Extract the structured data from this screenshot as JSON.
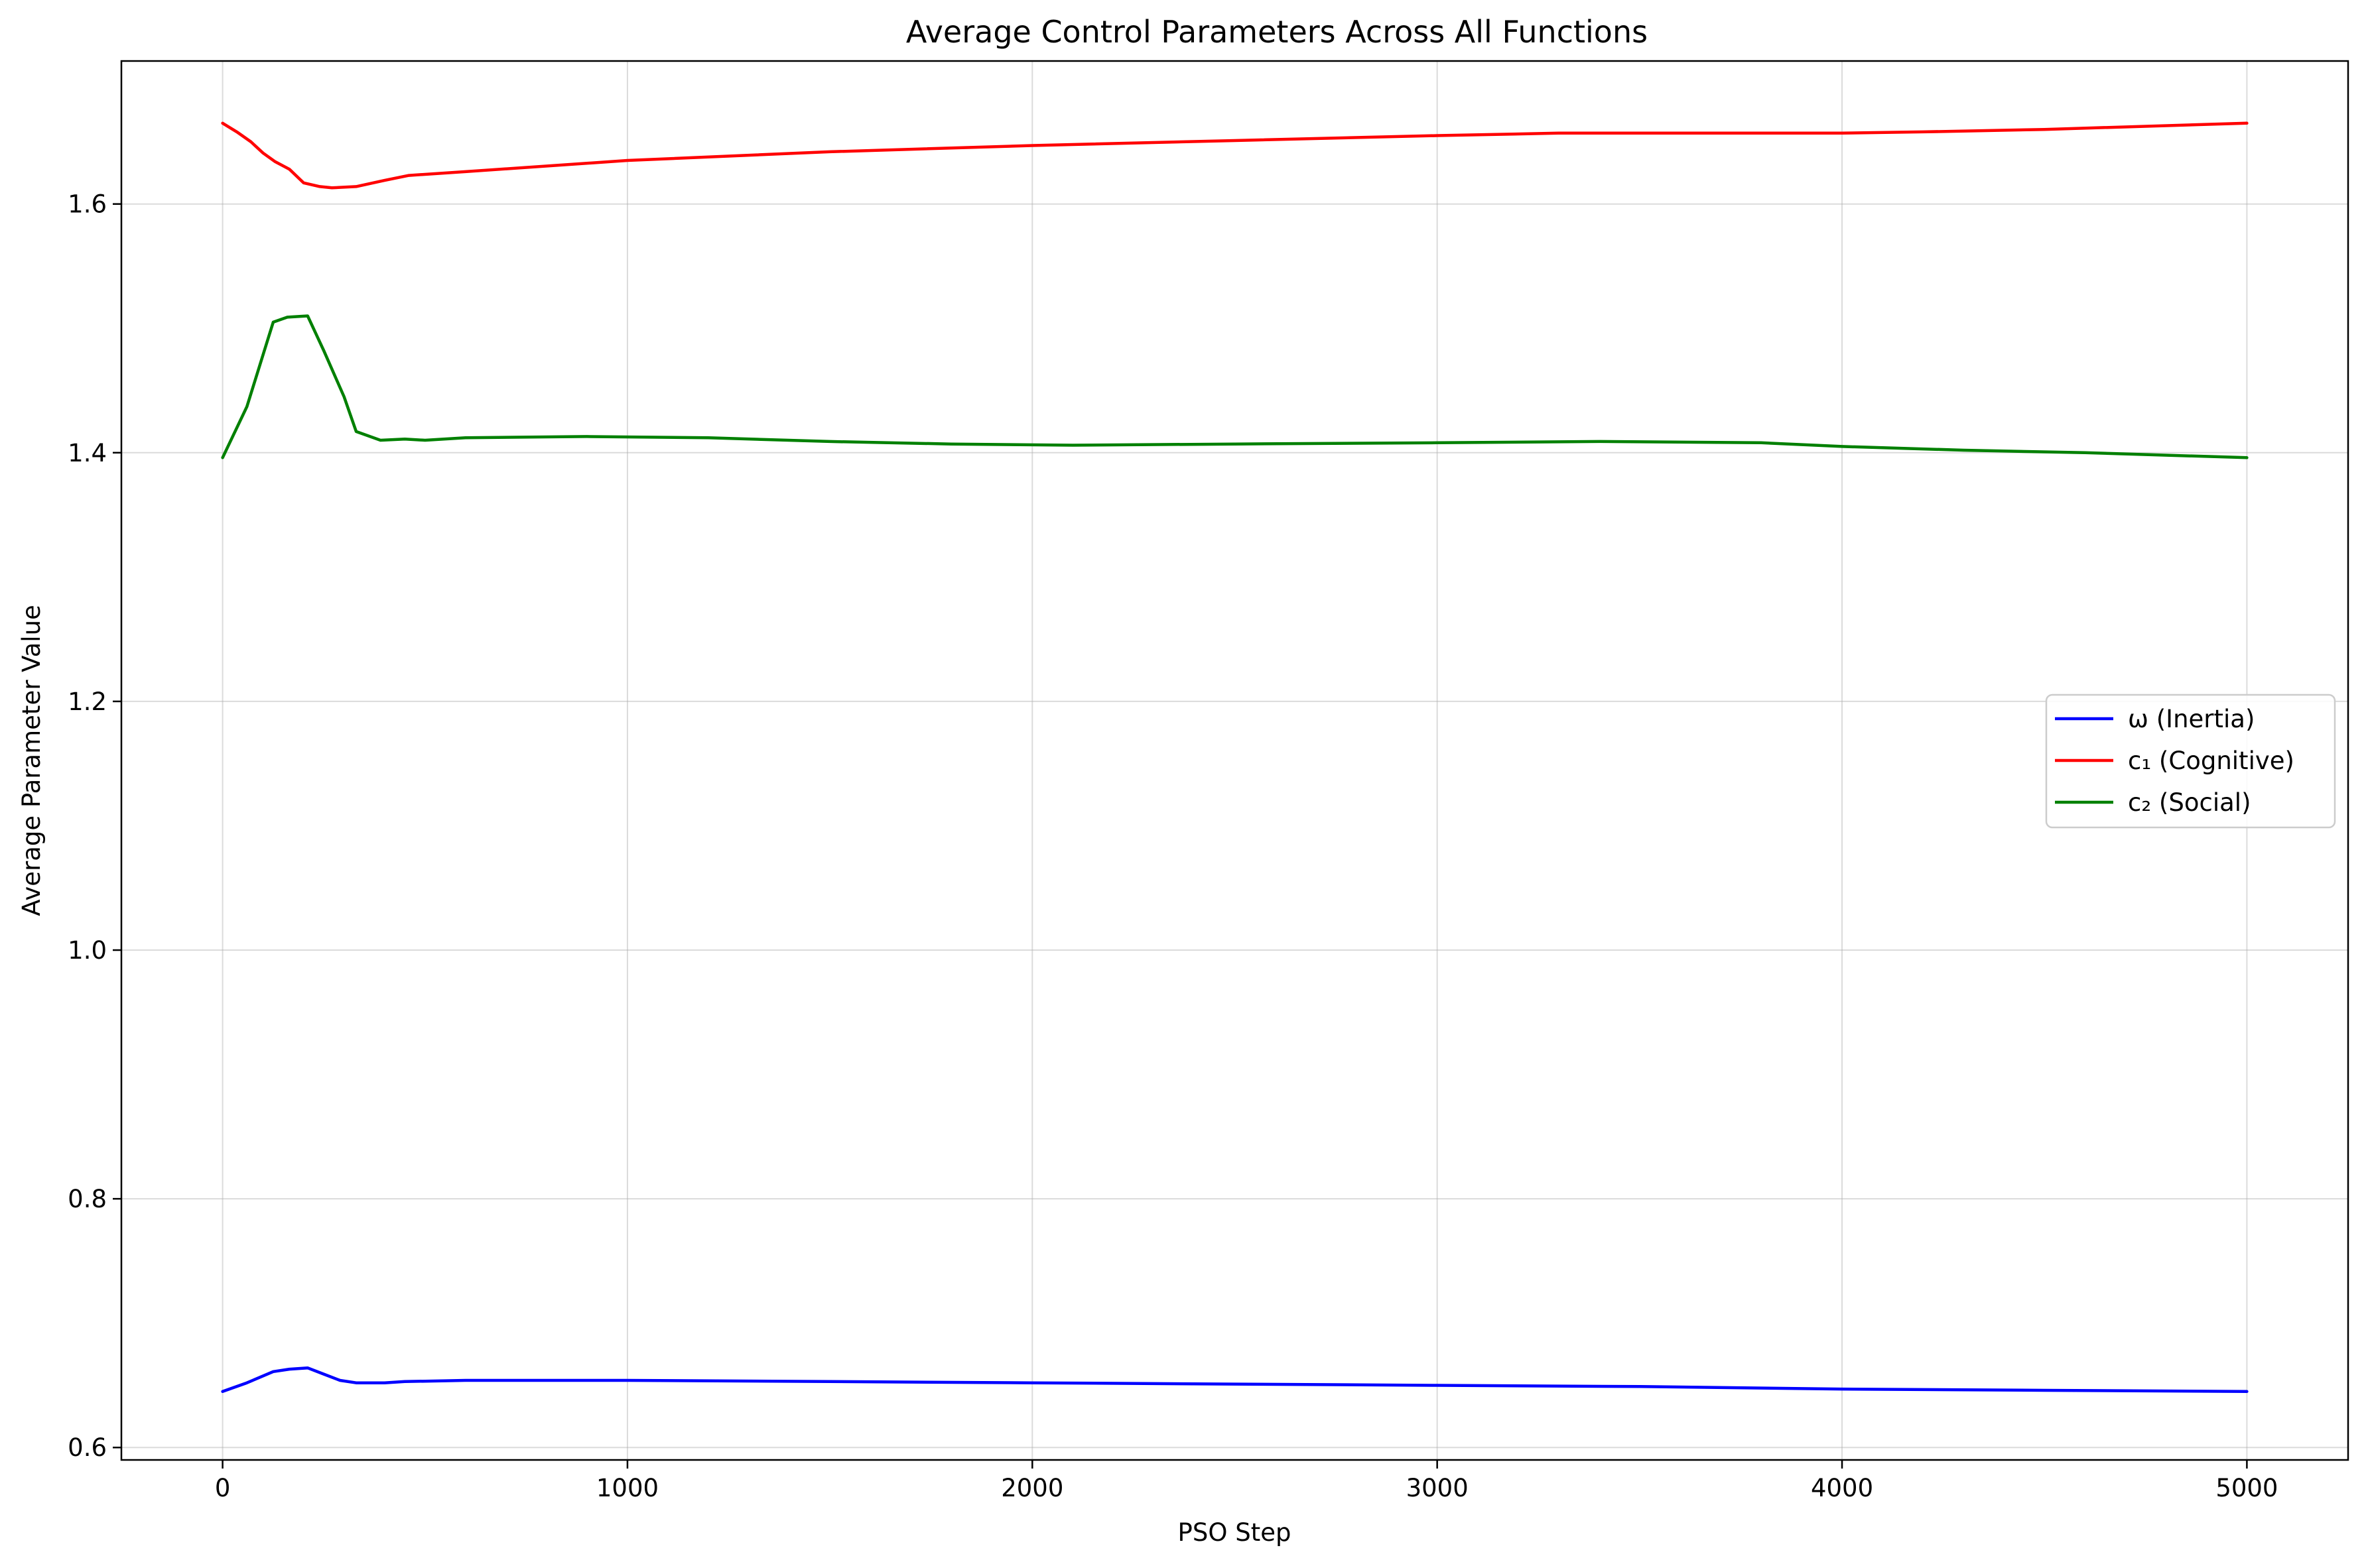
{
  "chart_data": {
    "type": "line",
    "title": "Average Control Parameters Across All Functions",
    "xlabel": "PSO Step",
    "ylabel": "Average Parameter Value",
    "xlim": [
      -250,
      5250
    ],
    "ylim": [
      0.59,
      1.715
    ],
    "xticks": [
      0,
      1000,
      2000,
      3000,
      4000,
      5000
    ],
    "xtick_labels": [
      "0",
      "1000",
      "2000",
      "3000",
      "4000",
      "5000"
    ],
    "yticks": [
      0.6,
      0.8,
      1.0,
      1.2,
      1.4,
      1.6
    ],
    "ytick_labels": [
      "0.6",
      "0.8",
      "1.0",
      "1.2",
      "1.4",
      "1.6"
    ],
    "grid": true,
    "legend_position": "center-right",
    "series": [
      {
        "name": "ω (Inertia)",
        "color": "#0000ff",
        "points": [
          [
            0,
            0.645
          ],
          [
            60,
            0.652
          ],
          [
            125,
            0.661
          ],
          [
            165,
            0.663
          ],
          [
            210,
            0.664
          ],
          [
            250,
            0.659
          ],
          [
            290,
            0.654
          ],
          [
            330,
            0.652
          ],
          [
            400,
            0.652
          ],
          [
            450,
            0.653
          ],
          [
            600,
            0.654
          ],
          [
            1000,
            0.654
          ],
          [
            1500,
            0.653
          ],
          [
            2000,
            0.652
          ],
          [
            2500,
            0.651
          ],
          [
            3000,
            0.65
          ],
          [
            3500,
            0.649
          ],
          [
            4000,
            0.647
          ],
          [
            4500,
            0.646
          ],
          [
            5000,
            0.645
          ]
        ]
      },
      {
        "name": "c₁ (Cognitive)",
        "color": "#ff0000",
        "points": [
          [
            0,
            1.665
          ],
          [
            35,
            1.658
          ],
          [
            70,
            1.65
          ],
          [
            100,
            1.641
          ],
          [
            130,
            1.634
          ],
          [
            165,
            1.628
          ],
          [
            200,
            1.617
          ],
          [
            240,
            1.614
          ],
          [
            270,
            1.613
          ],
          [
            330,
            1.614
          ],
          [
            400,
            1.619
          ],
          [
            460,
            1.623
          ],
          [
            600,
            1.626
          ],
          [
            1000,
            1.635
          ],
          [
            1500,
            1.642
          ],
          [
            2000,
            1.647
          ],
          [
            2500,
            1.651
          ],
          [
            3000,
            1.655
          ],
          [
            3300,
            1.657
          ],
          [
            3600,
            1.657
          ],
          [
            4000,
            1.657
          ],
          [
            4200,
            1.658
          ],
          [
            4500,
            1.66
          ],
          [
            5000,
            1.665
          ]
        ]
      },
      {
        "name": "c₂ (Social)",
        "color": "#008000",
        "points": [
          [
            0,
            1.396
          ],
          [
            60,
            1.437
          ],
          [
            125,
            1.505
          ],
          [
            160,
            1.509
          ],
          [
            210,
            1.51
          ],
          [
            250,
            1.482
          ],
          [
            300,
            1.445
          ],
          [
            330,
            1.417
          ],
          [
            390,
            1.41
          ],
          [
            450,
            1.411
          ],
          [
            500,
            1.41
          ],
          [
            600,
            1.412
          ],
          [
            900,
            1.413
          ],
          [
            1200,
            1.412
          ],
          [
            1500,
            1.409
          ],
          [
            1800,
            1.407
          ],
          [
            2100,
            1.406
          ],
          [
            2500,
            1.407
          ],
          [
            3000,
            1.408
          ],
          [
            3400,
            1.409
          ],
          [
            3800,
            1.408
          ],
          [
            4000,
            1.405
          ],
          [
            4300,
            1.402
          ],
          [
            4600,
            1.4
          ],
          [
            5000,
            1.396
          ]
        ]
      }
    ]
  }
}
